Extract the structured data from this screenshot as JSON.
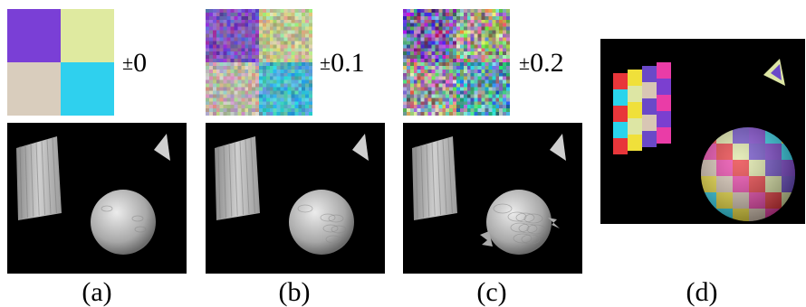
{
  "figure": {
    "panels": [
      {
        "id": "a",
        "caption": "(a)",
        "noise_symbol": "±",
        "noise_value": "0",
        "noise_level": 0.0
      },
      {
        "id": "b",
        "caption": "(b)",
        "noise_symbol": "±",
        "noise_value": "0.1",
        "noise_level": 0.1
      },
      {
        "id": "c",
        "caption": "(c)",
        "noise_symbol": "±",
        "noise_value": "0.2",
        "noise_level": 0.2
      },
      {
        "id": "d",
        "caption": "(d)"
      }
    ],
    "quadrant_colors": {
      "top_left": "#7a3fd6",
      "top_right": "#dfeaa0",
      "bottom_left": "#d9cdbd",
      "bottom_right": "#2fd0ee"
    },
    "checker_colors": [
      "#e8363a",
      "#f0e03a",
      "#6a49c8",
      "#ea3ca7",
      "#2ad4ec",
      "#dde6a4",
      "#d8c6b4",
      "#7b3fd0"
    ]
  }
}
